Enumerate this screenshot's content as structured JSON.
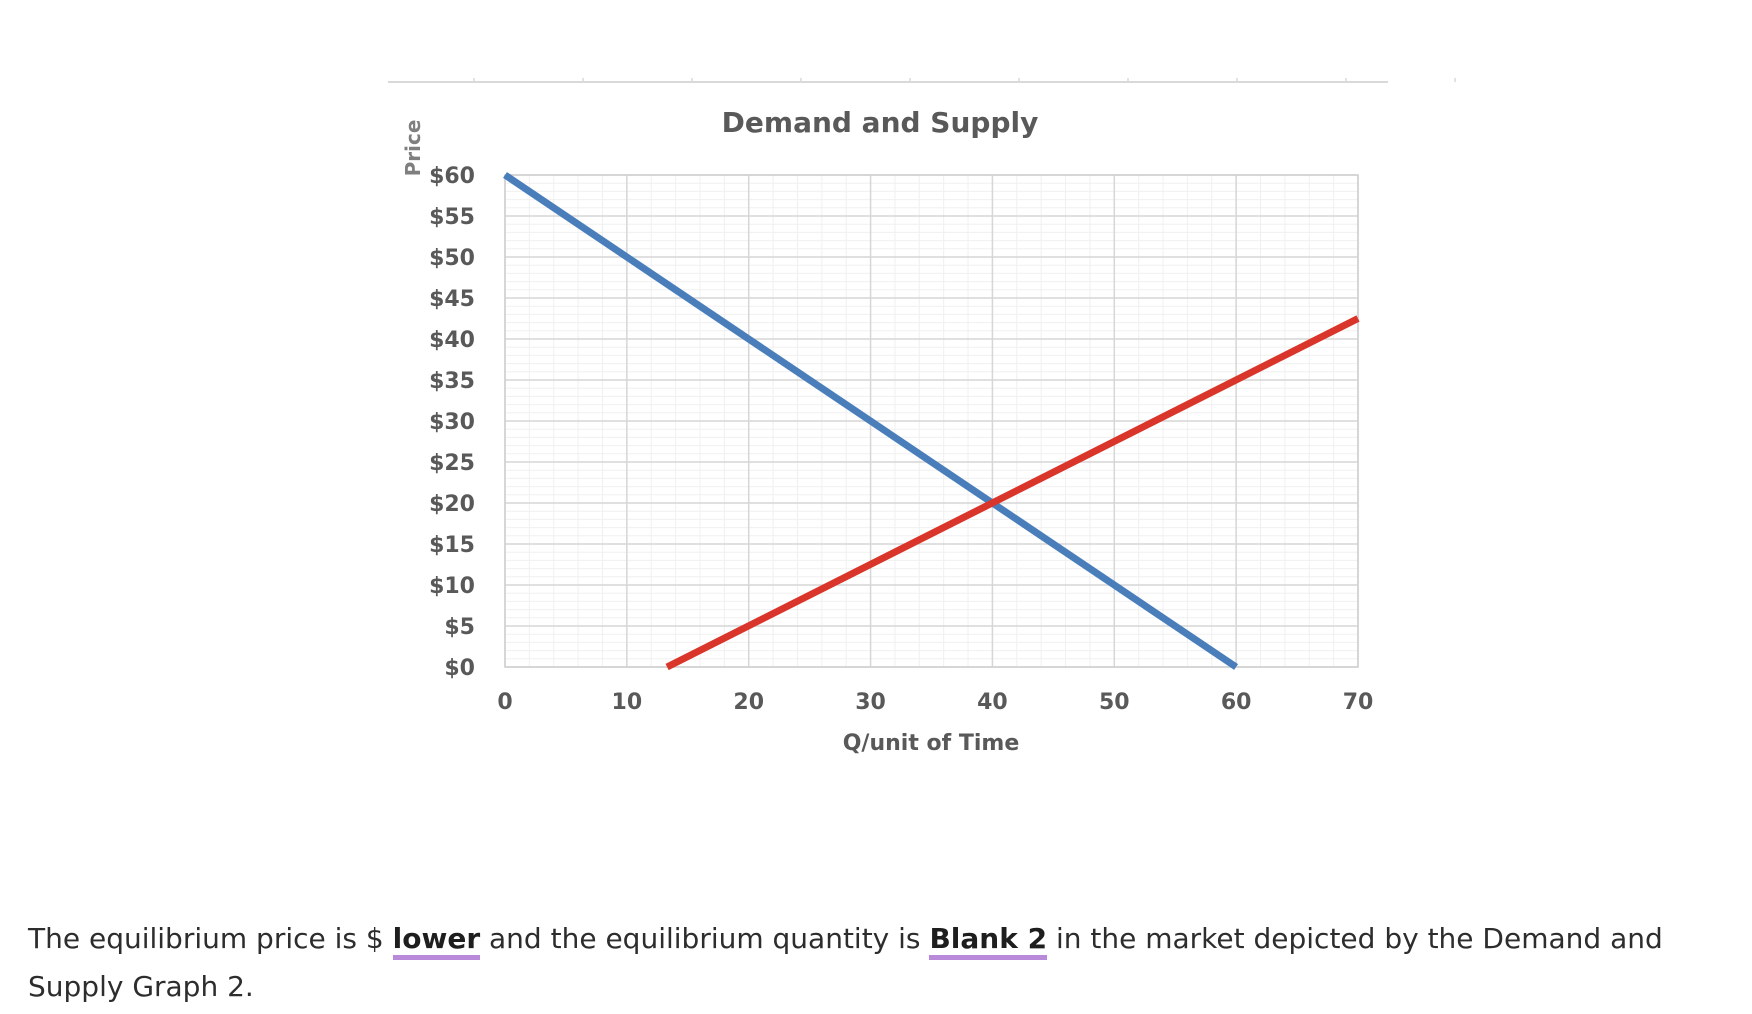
{
  "chart_data": {
    "type": "line",
    "title": "Demand and Supply",
    "xlabel": "Q/unit of Time",
    "ylabel": "Price",
    "xlim": [
      0,
      70
    ],
    "ylim": [
      0,
      60
    ],
    "x_ticks": [
      "0",
      "10",
      "20",
      "30",
      "40",
      "50",
      "60",
      "70"
    ],
    "y_ticks": [
      "$60",
      "$55",
      "$50",
      "$45",
      "$40",
      "$35",
      "$30",
      "$25",
      "$20",
      "$15",
      "$10",
      "$5",
      "$0"
    ],
    "grid": true,
    "series": [
      {
        "color": "#4a7ebb",
        "points": [
          [
            0,
            60
          ],
          [
            60,
            0
          ]
        ]
      },
      {
        "color": "#d9352a",
        "points": [
          [
            13.3,
            0
          ],
          [
            70,
            42.5
          ]
        ]
      }
    ]
  },
  "question": {
    "text_1": "The equilibrium price is $ ",
    "blank_1": "lower",
    "text_2": " and the equilibrium quantity is ",
    "blank_2": "Blank 2",
    "text_3": " in the market depicted by the  Demand and Supply Graph 2."
  }
}
